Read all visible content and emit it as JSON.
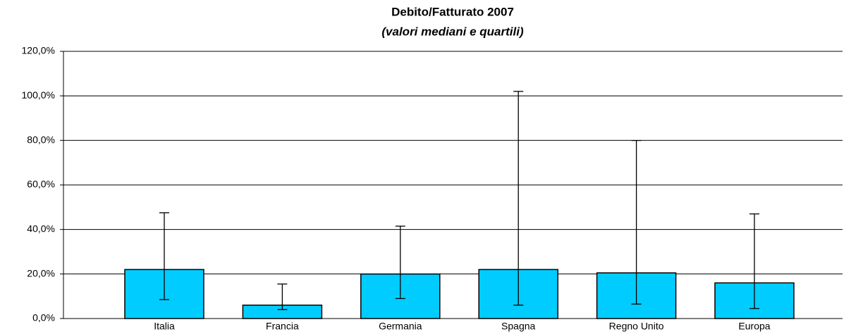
{
  "chart_data": {
    "type": "bar",
    "title": "Debito/Fatturato 2007",
    "subtitle": "(valori mediani e quartili)",
    "categories": [
      "Italia",
      "Francia",
      "Germania",
      "Spagna",
      "Regno Unito",
      "Europa"
    ],
    "values": [
      22,
      6,
      20,
      22,
      20.5,
      16
    ],
    "q1": [
      8.5,
      4,
      9,
      6,
      6.5,
      4.5
    ],
    "q3": [
      47.5,
      15.5,
      41.5,
      102,
      80,
      47
    ],
    "color": "#00ccff",
    "ylim": [
      0,
      120
    ],
    "yticks": [
      {
        "value": 0,
        "label": "0,0%"
      },
      {
        "value": 20,
        "label": "20,0%"
      },
      {
        "value": 40,
        "label": "40,0%"
      },
      {
        "value": 60,
        "label": "60,0%"
      },
      {
        "value": 80,
        "label": "80,0%"
      },
      {
        "value": 100,
        "label": "100,0%"
      },
      {
        "value": 120,
        "label": "120,0%"
      }
    ],
    "grid": true
  }
}
